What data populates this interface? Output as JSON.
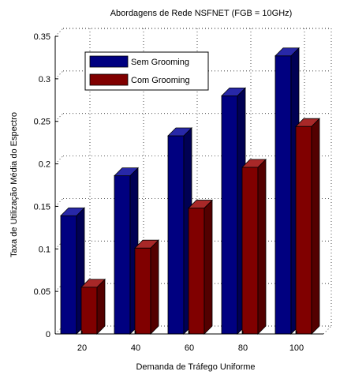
{
  "chart_data": {
    "type": "bar",
    "title": "Abordagens de Rede NSFNET (FGB = 10GHz)",
    "xlabel": "Demanda de Tráfego Uniforme",
    "ylabel": "Taxa de Utilização Média do Espectro",
    "categories": [
      "20",
      "40",
      "60",
      "80",
      "100"
    ],
    "series": [
      {
        "name": "Sem Grooming",
        "values": [
          0.139,
          0.186,
          0.233,
          0.28,
          0.327
        ],
        "color": "#000080"
      },
      {
        "name": "Com Grooming",
        "values": [
          0.055,
          0.101,
          0.148,
          0.196,
          0.244
        ],
        "color": "#800000"
      }
    ],
    "ylim": [
      0,
      0.35
    ],
    "yticks": [
      "0",
      "0.05",
      "0.1",
      "0.15",
      "0.2",
      "0.25",
      "0.3",
      "0.35"
    ],
    "grid": true,
    "legend_position": "top-left",
    "style": "3d-bars"
  }
}
